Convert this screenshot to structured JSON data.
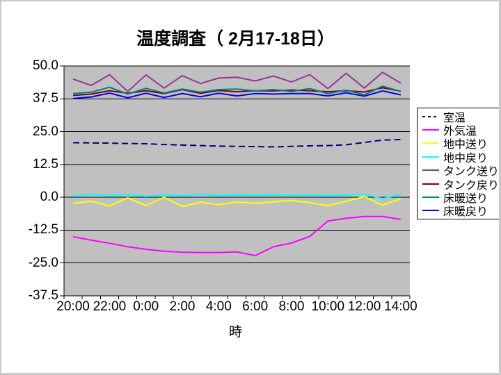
{
  "window": {
    "background": "#ffffff",
    "border_color": "#c9c9c9"
  },
  "chart_data": {
    "type": "line",
    "title": "温度調査（ 2月17-18日）",
    "xlabel": "時",
    "ylabel": "",
    "ylim": [
      -37.5,
      50.0
    ],
    "grid": true,
    "plot_bg_color": "#c0c0c0",
    "gridline_color": "#000000",
    "legend_position": "right",
    "y_ticks": [
      "50.0",
      "37.5",
      "25.0",
      "12.5",
      "0.0",
      "-12.5",
      "-25.0",
      "-37.5"
    ],
    "y_tick_values": [
      50.0,
      37.5,
      25.0,
      12.5,
      0.0,
      -12.5,
      -25.0,
      -37.5
    ],
    "categories": [
      "20:00",
      "21:00",
      "22:00",
      "23:00",
      "0:00",
      "1:00",
      "2:00",
      "3:00",
      "4:00",
      "5:00",
      "6:00",
      "7:00",
      "8:00",
      "9:00",
      "10:00",
      "11:00",
      "12:00",
      "13:00",
      "14:00"
    ],
    "x_tick_labels": [
      "20:00",
      "22:00",
      "0:00",
      "2:00",
      "4:00",
      "6:00",
      "8:00",
      "10:00",
      "12:00",
      "14:00"
    ],
    "series": [
      {
        "name": "室温",
        "color": "#000080",
        "dash": "9,5",
        "values": [
          20.8,
          20.7,
          20.6,
          20.5,
          20.4,
          20.1,
          19.9,
          19.7,
          19.5,
          19.4,
          19.3,
          19.2,
          19.4,
          19.6,
          19.7,
          20.0,
          20.9,
          21.8,
          22.0
        ]
      },
      {
        "name": "外気温",
        "color": "#ff00ff",
        "dash": null,
        "values": [
          -15.0,
          -16.3,
          -17.5,
          -18.8,
          -19.8,
          -20.5,
          -20.9,
          -21.0,
          -21.0,
          -20.8,
          -22.2,
          -18.8,
          -17.4,
          -14.9,
          -9.0,
          -8.0,
          -7.3,
          -7.3,
          -8.4
        ]
      },
      {
        "name": "地中送り",
        "color": "#ffff00",
        "dash": null,
        "values": [
          -2.3,
          -1.5,
          -3.3,
          -0.2,
          -3.2,
          0.0,
          -3.5,
          -1.8,
          -2.8,
          -1.8,
          -2.3,
          -1.7,
          -1.2,
          -2.0,
          -3.2,
          -1.5,
          0.3,
          -3.0,
          -0.5
        ]
      },
      {
        "name": "地中戻り",
        "color": "#00ffff",
        "dash": null,
        "values": [
          0.5,
          1.3,
          0.5,
          1.2,
          0.3,
          1.0,
          0.5,
          1.2,
          0.7,
          0.9,
          0.8,
          0.9,
          0.8,
          0.8,
          0.7,
          0.9,
          1.2,
          -0.5,
          1.1
        ]
      },
      {
        "name": "タンク送り",
        "color": "#993399",
        "dash": null,
        "values": [
          45.0,
          42.6,
          46.7,
          40.3,
          46.6,
          41.6,
          46.3,
          43.3,
          45.4,
          45.7,
          44.3,
          46.2,
          43.9,
          46.7,
          41.4,
          47.2,
          41.6,
          47.6,
          43.5
        ]
      },
      {
        "name": "タンク戻り",
        "color": "#800000",
        "dash": null,
        "values": [
          38.8,
          39.3,
          40.6,
          39.6,
          40.6,
          39.5,
          41.0,
          39.6,
          40.7,
          40.2,
          40.6,
          40.5,
          40.8,
          40.6,
          40.2,
          40.6,
          40.1,
          41.7,
          40.4
        ]
      },
      {
        "name": "床暖送り",
        "color": "#008080",
        "dash": null,
        "values": [
          39.5,
          40.0,
          41.9,
          39.3,
          41.5,
          39.7,
          41.2,
          40.0,
          41.0,
          41.2,
          40.5,
          41.0,
          40.3,
          41.4,
          39.5,
          40.8,
          39.0,
          42.3,
          40.3
        ]
      },
      {
        "name": "床暖戻り",
        "color": "#0000ff",
        "dash": null,
        "values": [
          37.6,
          38.2,
          39.7,
          37.9,
          39.6,
          38.0,
          39.5,
          38.3,
          39.6,
          38.6,
          39.5,
          39.3,
          39.5,
          39.5,
          38.6,
          39.8,
          38.5,
          40.5,
          39.0
        ]
      }
    ]
  }
}
